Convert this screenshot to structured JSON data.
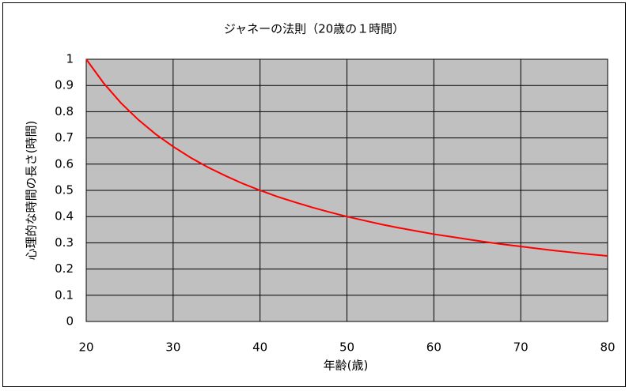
{
  "chart_data": {
    "type": "line",
    "title": "ジャネーの法則（20歳の１時間）",
    "xlabel": "年齢(歳)",
    "ylabel": "心理的な時間の長さ(時間)",
    "x": [
      20,
      22,
      24,
      26,
      28,
      30,
      32,
      34,
      36,
      38,
      40,
      42,
      44,
      46,
      48,
      50,
      52,
      54,
      56,
      58,
      60,
      62,
      64,
      66,
      68,
      70,
      72,
      74,
      76,
      78,
      80
    ],
    "series": [
      {
        "name": "心理的な時間の長さ",
        "color": "#ff0000",
        "values": [
          1,
          0.909,
          0.833,
          0.769,
          0.714,
          0.667,
          0.625,
          0.588,
          0.556,
          0.526,
          0.5,
          0.476,
          0.455,
          0.435,
          0.417,
          0.4,
          0.385,
          0.37,
          0.357,
          0.345,
          0.333,
          0.323,
          0.313,
          0.303,
          0.294,
          0.286,
          0.278,
          0.27,
          0.263,
          0.256,
          0.25
        ]
      }
    ],
    "xlim": [
      20,
      80
    ],
    "xticks": [
      20,
      30,
      40,
      50,
      60,
      70,
      80
    ],
    "ylim": [
      0,
      1
    ],
    "yticks": [
      0,
      0.1,
      0.2,
      0.3,
      0.4,
      0.5,
      0.6,
      0.7,
      0.8,
      0.9,
      1
    ],
    "grid": true,
    "plot_background": "#c0c0c0"
  }
}
